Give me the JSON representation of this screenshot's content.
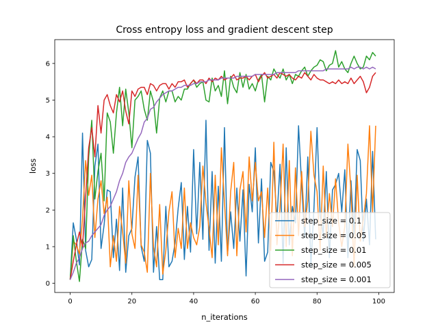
{
  "chart_data": {
    "type": "line",
    "title": "Cross entropy loss and gradient descent step",
    "xlabel": "n_iterations",
    "ylabel": "loss",
    "xlim": [
      -5,
      105
    ],
    "ylim": [
      -0.25,
      6.65
    ],
    "xticks": [
      0,
      20,
      40,
      60,
      80,
      100
    ],
    "yticks": [
      0,
      1,
      2,
      3,
      4,
      5,
      6
    ],
    "grid": false,
    "legend_position": "lower right",
    "x": [
      0,
      1,
      2,
      3,
      4,
      5,
      6,
      7,
      8,
      9,
      10,
      11,
      12,
      13,
      14,
      15,
      16,
      17,
      18,
      19,
      20,
      21,
      22,
      23,
      24,
      25,
      26,
      27,
      28,
      29,
      30,
      31,
      32,
      33,
      34,
      35,
      36,
      37,
      38,
      39,
      40,
      41,
      42,
      43,
      44,
      45,
      46,
      47,
      48,
      49,
      50,
      51,
      52,
      53,
      54,
      55,
      56,
      57,
      58,
      59,
      60,
      61,
      62,
      63,
      64,
      65,
      66,
      67,
      68,
      69,
      70,
      71,
      72,
      73,
      74,
      75,
      76,
      77,
      78,
      79,
      80,
      81,
      82,
      83,
      84,
      85,
      86,
      87,
      88,
      89,
      90,
      91,
      92,
      93,
      94,
      95,
      96,
      97,
      98,
      99
    ],
    "series": [
      {
        "name": "step_size = 0.1",
        "color": "#1f77b4",
        "values": [
          0.1,
          1.65,
          1.2,
          0.5,
          4.1,
          0.9,
          0.45,
          0.65,
          3.2,
          3.8,
          0.95,
          1.6,
          2.55,
          2.5,
          0.7,
          1.75,
          0.35,
          2.6,
          0.3,
          1.3,
          1.5,
          2.9,
          3.45,
          1.0,
          0.6,
          3.9,
          3.55,
          0.3,
          1.55,
          0.1,
          0.1,
          2.1,
          0.45,
          0.6,
          1.1,
          2.05,
          2.75,
          0.65,
          2.1,
          0.85,
          3.65,
          1.35,
          3.3,
          1.2,
          4.45,
          0.9,
          3.05,
          0.55,
          2.65,
          0.6,
          4.25,
          0.8,
          1.95,
          0.95,
          2.6,
          1.15,
          2.55,
          0.2,
          2.7,
          1.95,
          3.7,
          1.1,
          2.85,
          0.6,
          0.85,
          3.3,
          3.05,
          1.75,
          3.25,
          0.55,
          3.7,
          1.05,
          2.1,
          1.65,
          4.3,
          2.7,
          1.25,
          3.45,
          0.45,
          2.05,
          4.25,
          1.85,
          1.35,
          3.05,
          0.7,
          2.55,
          2.7,
          3.0,
          1.95,
          3.1,
          0.7,
          2.8,
          1.35,
          3.65,
          3.35,
          1.15,
          2.3,
          1.05,
          3.6,
          1.2
        ]
      },
      {
        "name": "step_size = 0.05",
        "color": "#ff7f0e",
        "values": [
          0.1,
          1.15,
          1.05,
          0.8,
          1.75,
          3.35,
          2.4,
          2.95,
          1.25,
          2.3,
          2.8,
          1.9,
          2.35,
          0.45,
          1.3,
          0.6,
          2.1,
          1.4,
          0.55,
          2.8,
          1.35,
          0.95,
          2.95,
          1.05,
          0.85,
          0.3,
          3.0,
          1.0,
          0.45,
          2.15,
          0.25,
          0.9,
          1.95,
          2.5,
          0.7,
          1.5,
          0.95,
          2.6,
          0.95,
          1.65,
          1.25,
          1.05,
          1.55,
          3.2,
          2.2,
          1.5,
          0.7,
          2.95,
          1.05,
          3.7,
          2.2,
          0.75,
          2.5,
          3.3,
          0.75,
          2.55,
          3.05,
          1.4,
          3.45,
          2.25,
          3.3,
          2.25,
          2.5,
          1.25,
          2.6,
          0.9,
          3.85,
          1.05,
          2.05,
          3.8,
          1.0,
          3.35,
          0.75,
          3.15,
          1.3,
          3.05,
          1.55,
          2.25,
          4.15,
          2.95,
          2.5,
          0.9,
          3.2,
          1.25,
          2.45,
          1.55,
          2.85,
          1.65,
          1.0,
          1.55,
          3.8,
          2.5,
          0.45,
          2.95,
          1.15,
          1.75,
          2.45,
          4.3,
          1.95,
          4.3
        ]
      },
      {
        "name": "step_size = 0.01",
        "color": "#2ca02c",
        "values": [
          0.1,
          1.3,
          0.6,
          0.05,
          1.2,
          0.95,
          3.45,
          4.45,
          2.3,
          3.05,
          3.55,
          2.25,
          4.65,
          4.4,
          3.55,
          4.65,
          5.35,
          4.3,
          5.3,
          4.65,
          3.7,
          5.0,
          5.1,
          5.25,
          4.75,
          4.45,
          5.25,
          4.95,
          4.1,
          5.05,
          5.25,
          4.95,
          5.25,
          5.25,
          4.95,
          5.1,
          5.0,
          5.3,
          5.3,
          5.45,
          5.55,
          5.35,
          5.45,
          5.5,
          5.0,
          4.95,
          5.6,
          5.25,
          5.4,
          5.1,
          5.8,
          4.9,
          5.65,
          5.35,
          5.2,
          5.75,
          5.35,
          5.7,
          5.3,
          5.45,
          5.25,
          5.55,
          5.7,
          4.95,
          5.65,
          5.55,
          5.85,
          5.7,
          5.6,
          5.85,
          5.55,
          5.7,
          5.45,
          5.7,
          5.65,
          5.8,
          5.9,
          5.65,
          5.8,
          5.9,
          5.95,
          6.1,
          6.05,
          5.8,
          5.95,
          6.0,
          6.35,
          5.9,
          6.05,
          5.85,
          5.75,
          6.0,
          6.2,
          6.0,
          5.85,
          5.9,
          6.2,
          6.1,
          6.3,
          6.2
        ]
      },
      {
        "name": "step_size = 0.005",
        "color": "#d62728",
        "values": [
          0.1,
          0.6,
          1.05,
          1.4,
          1.0,
          2.35,
          3.7,
          4.25,
          3.45,
          4.85,
          4.1,
          5.0,
          5.15,
          4.85,
          4.65,
          5.15,
          4.95,
          5.25,
          4.7,
          4.35,
          5.25,
          5.1,
          5.3,
          5.35,
          5.35,
          5.15,
          5.45,
          5.4,
          5.25,
          5.4,
          5.45,
          5.45,
          5.3,
          5.45,
          5.35,
          5.5,
          5.5,
          5.55,
          5.35,
          5.45,
          5.55,
          5.45,
          5.55,
          5.55,
          5.45,
          5.6,
          5.5,
          5.6,
          5.55,
          5.65,
          5.55,
          5.6,
          5.6,
          5.7,
          5.55,
          5.6,
          5.6,
          5.65,
          5.55,
          5.65,
          5.7,
          5.5,
          5.65,
          5.75,
          5.6,
          5.65,
          5.7,
          5.6,
          5.75,
          5.7,
          5.65,
          5.7,
          5.6,
          5.55,
          5.65,
          5.6,
          5.75,
          5.65,
          5.55,
          5.7,
          5.6,
          5.55,
          5.55,
          5.5,
          5.45,
          5.5,
          5.45,
          5.55,
          5.45,
          5.5,
          5.45,
          5.6,
          5.45,
          5.55,
          5.65,
          5.5,
          5.2,
          5.35,
          5.65,
          5.75
        ]
      },
      {
        "name": "step_size = 0.001",
        "color": "#9467bd",
        "values": [
          0.1,
          0.3,
          0.55,
          0.7,
          0.95,
          1.1,
          1.15,
          1.3,
          1.4,
          1.5,
          1.6,
          1.85,
          2.0,
          2.1,
          2.3,
          2.5,
          2.8,
          3.0,
          3.3,
          3.45,
          3.55,
          3.75,
          3.95,
          4.1,
          4.4,
          4.5,
          4.75,
          4.8,
          4.95,
          5.05,
          5.15,
          5.2,
          5.25,
          5.25,
          5.3,
          5.35,
          5.35,
          5.4,
          5.4,
          5.4,
          5.45,
          5.45,
          5.5,
          5.5,
          5.5,
          5.55,
          5.55,
          5.55,
          5.55,
          5.6,
          5.6,
          5.6,
          5.6,
          5.6,
          5.65,
          5.65,
          5.65,
          5.65,
          5.65,
          5.65,
          5.7,
          5.7,
          5.7,
          5.7,
          5.7,
          5.7,
          5.7,
          5.75,
          5.75,
          5.75,
          5.75,
          5.75,
          5.75,
          5.75,
          5.8,
          5.8,
          5.8,
          5.8,
          5.8,
          5.8,
          5.8,
          5.8,
          5.8,
          5.85,
          5.85,
          5.85,
          5.85,
          5.85,
          5.85,
          5.85,
          5.85,
          5.9,
          5.85,
          5.9,
          5.9,
          5.85,
          5.9,
          5.85,
          5.9,
          5.85
        ]
      }
    ]
  }
}
